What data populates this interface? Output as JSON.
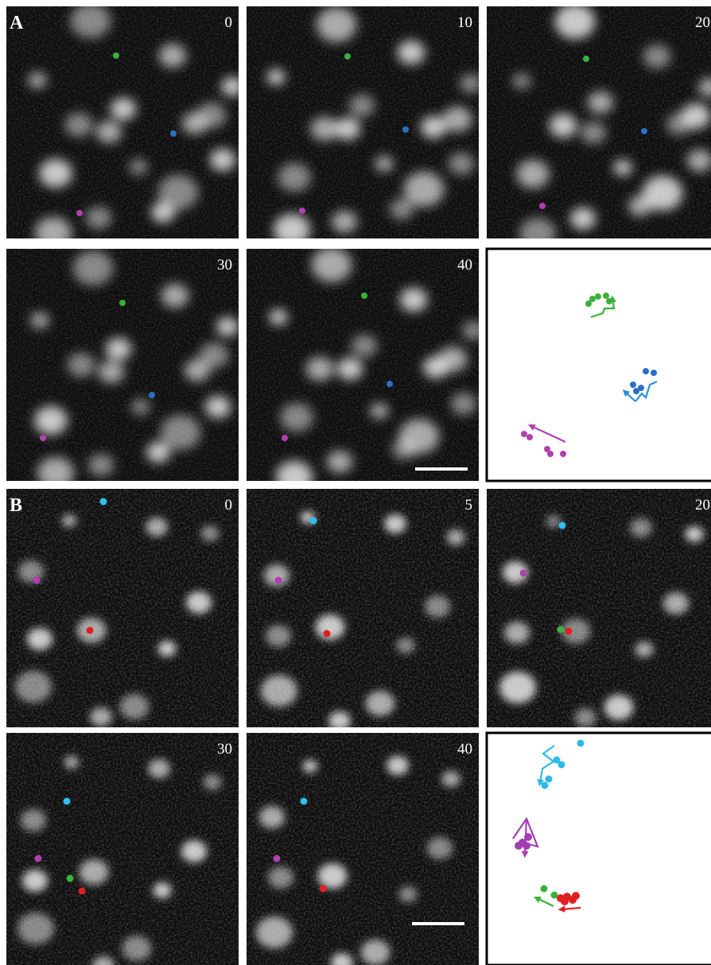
{
  "figure": {
    "panels": [
      {
        "label": "A",
        "frames": [
          0,
          10,
          20,
          30,
          40
        ]
      },
      {
        "label": "B",
        "frames": [
          0,
          5,
          20,
          30,
          40
        ]
      }
    ]
  }
}
